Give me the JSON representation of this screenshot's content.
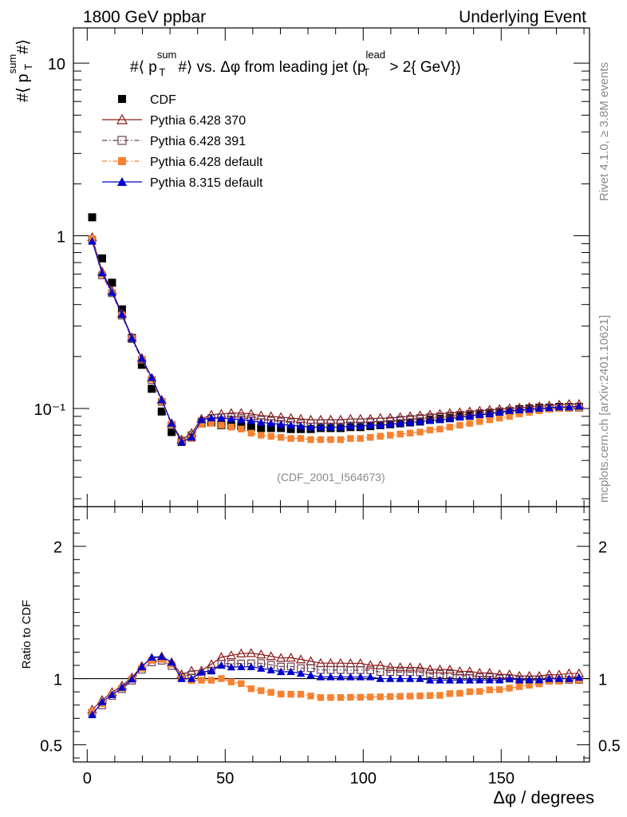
{
  "chart_data": {
    "type": "scatter",
    "header_left": "1800 GeV ppbar",
    "header_right": "Underlying Event",
    "title": "#⟨ p_T^{sum}#⟩ vs. Δφ from leading jet  (p_T^{lead} > 2{ GeV})",
    "title_parts": {
      "pre": "#⟨ p",
      "sup1": "sum",
      "sub1": "T",
      "mid": "#⟩ vs. Δφ from leading jet  (p",
      "sup2": "lead",
      "sub2": "T",
      "post": " > 2{ GeV})"
    },
    "ylabel_parts": {
      "pre": "#⟨ p",
      "sup": "sum",
      "sub": "T",
      "post": "#⟩"
    },
    "xlabel": "Δφ / degrees",
    "ratio_ylabel": "Ratio to CDF",
    "analysis_tag": "(CDF_2001_I564673)",
    "side_text_top": "Rivet 4.1.0, ≥ 3.8M events",
    "side_text_bottom": "mcplots.cern.ch [arXiv:2401.10621]",
    "xlim": [
      -5,
      182
    ],
    "ylim": [
      0.027,
      16
    ],
    "yscale": "log",
    "ratio_ylim": [
      0.37,
      2.3
    ],
    "x_ticks": [
      0,
      50,
      100,
      150
    ],
    "y_ticks": [
      {
        "v": 0.1,
        "label": "10⁻¹"
      },
      {
        "v": 1,
        "label": "1"
      },
      {
        "v": 10,
        "label": "10"
      }
    ],
    "ratio_ticks": [
      {
        "v": 0.5,
        "label": "0.5"
      },
      {
        "v": 1,
        "label": "1"
      },
      {
        "v": 2,
        "label": "2"
      }
    ],
    "x": [
      1.8,
      5.4,
      9.0,
      12.6,
      16.2,
      19.8,
      23.4,
      27.0,
      30.6,
      34.2,
      37.8,
      41.4,
      45.0,
      48.6,
      52.2,
      55.8,
      59.4,
      63.0,
      66.6,
      70.2,
      73.8,
      77.4,
      81.0,
      84.6,
      88.2,
      91.8,
      95.4,
      99.0,
      102.6,
      106.2,
      109.8,
      113.4,
      117.0,
      120.6,
      124.2,
      127.8,
      131.4,
      135.0,
      138.6,
      142.2,
      145.8,
      149.4,
      153.0,
      156.6,
      160.2,
      163.8,
      167.4,
      171.0,
      174.6,
      178.2
    ],
    "series": [
      {
        "name": "CDF",
        "color": "#000000",
        "marker": "square-filled",
        "line": "none",
        "values": [
          1.28,
          0.74,
          0.535,
          0.375,
          0.256,
          0.179,
          0.13,
          0.096,
          0.073,
          0.064,
          0.068,
          0.082,
          0.083,
          0.08,
          0.08,
          0.079,
          0.078,
          0.077,
          0.077,
          0.077,
          0.076,
          0.076,
          0.076,
          0.077,
          0.077,
          0.077,
          0.078,
          0.078,
          0.079,
          0.08,
          0.081,
          0.082,
          0.083,
          0.084,
          0.086,
          0.087,
          0.088,
          0.09,
          0.091,
          0.093,
          0.094,
          0.096,
          0.097,
          0.099,
          0.1,
          0.101,
          0.101,
          0.102,
          0.102,
          0.102
        ]
      },
      {
        "name": "Pythia 6.428 370",
        "color": "#8b1a1a",
        "marker": "triangle-open",
        "line": "solid",
        "values": [
          0.98,
          0.62,
          0.48,
          0.355,
          0.258,
          0.196,
          0.15,
          0.112,
          0.082,
          0.066,
          0.072,
          0.087,
          0.092,
          0.093,
          0.094,
          0.094,
          0.093,
          0.091,
          0.09,
          0.089,
          0.088,
          0.087,
          0.086,
          0.086,
          0.086,
          0.086,
          0.087,
          0.087,
          0.087,
          0.088,
          0.088,
          0.089,
          0.09,
          0.091,
          0.092,
          0.093,
          0.094,
          0.095,
          0.096,
          0.097,
          0.098,
          0.099,
          0.1,
          0.101,
          0.102,
          0.103,
          0.104,
          0.105,
          0.106,
          0.106
        ]
      },
      {
        "name": "Pythia 6.428 391",
        "color": "#6b4050",
        "marker": "square-open",
        "line": "dashdot",
        "values": [
          0.95,
          0.59,
          0.465,
          0.345,
          0.252,
          0.191,
          0.146,
          0.109,
          0.08,
          0.065,
          0.07,
          0.084,
          0.088,
          0.089,
          0.089,
          0.088,
          0.087,
          0.086,
          0.085,
          0.084,
          0.083,
          0.082,
          0.082,
          0.082,
          0.082,
          0.082,
          0.083,
          0.083,
          0.084,
          0.084,
          0.085,
          0.086,
          0.087,
          0.088,
          0.089,
          0.09,
          0.091,
          0.092,
          0.093,
          0.094,
          0.095,
          0.096,
          0.097,
          0.098,
          0.099,
          0.1,
          0.1,
          0.101,
          0.101,
          0.101
        ]
      },
      {
        "name": "Pythia 6.428 default",
        "color": "#f58231",
        "marker": "square-filled",
        "line": "dashdot",
        "values": [
          0.96,
          0.6,
          0.47,
          0.348,
          0.255,
          0.193,
          0.148,
          0.11,
          0.081,
          0.064,
          0.067,
          0.081,
          0.082,
          0.08,
          0.078,
          0.076,
          0.072,
          0.07,
          0.069,
          0.068,
          0.067,
          0.067,
          0.066,
          0.066,
          0.066,
          0.066,
          0.067,
          0.067,
          0.068,
          0.069,
          0.07,
          0.071,
          0.072,
          0.073,
          0.075,
          0.076,
          0.078,
          0.08,
          0.082,
          0.084,
          0.086,
          0.088,
          0.09,
          0.093,
          0.095,
          0.097,
          0.099,
          0.1,
          0.101,
          0.101
        ]
      },
      {
        "name": "Pythia 8.315 default",
        "color": "#0000cc",
        "marker": "triangle-filled",
        "line": "solid",
        "values": [
          0.93,
          0.61,
          0.47,
          0.35,
          0.255,
          0.195,
          0.151,
          0.112,
          0.082,
          0.064,
          0.068,
          0.086,
          0.088,
          0.088,
          0.087,
          0.086,
          0.085,
          0.083,
          0.082,
          0.081,
          0.08,
          0.079,
          0.078,
          0.078,
          0.078,
          0.078,
          0.079,
          0.079,
          0.08,
          0.08,
          0.081,
          0.082,
          0.083,
          0.084,
          0.085,
          0.086,
          0.087,
          0.089,
          0.09,
          0.092,
          0.093,
          0.095,
          0.097,
          0.098,
          0.099,
          0.1,
          0.101,
          0.102,
          0.102,
          0.103
        ]
      }
    ]
  }
}
